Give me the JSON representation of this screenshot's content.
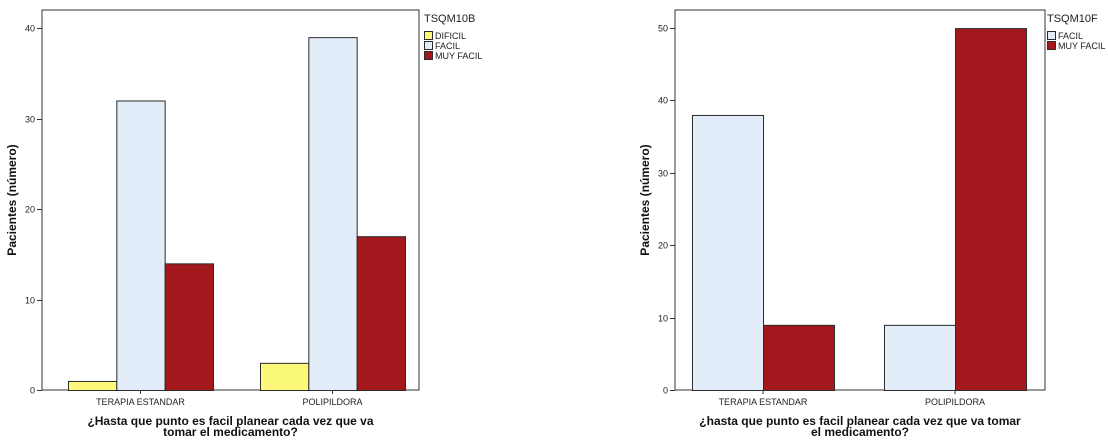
{
  "colors": {
    "DIFICIL": "#fbf87a",
    "FACIL": "#e3edfa",
    "MUY FACIL": "#a3181d",
    "frame": "#333333"
  },
  "chart_data": [
    {
      "type": "bar",
      "title": "",
      "legend_title": "TSQM10B",
      "legend_position": "top-right",
      "xlabel_lines": [
        "¿Hasta que punto es facil planear cada vez que va",
        "tomar el medicamento?"
      ],
      "ylabel": "Pacientes (número)",
      "categories": [
        "TERAPIA ESTANDAR",
        "POLIPILDORA"
      ],
      "series": [
        {
          "name": "DIFICIL",
          "values": [
            1,
            3
          ]
        },
        {
          "name": "FACIL",
          "values": [
            32,
            39
          ]
        },
        {
          "name": "MUY FACIL",
          "values": [
            14,
            17
          ]
        }
      ],
      "ylim": [
        0,
        42
      ],
      "yticks": [
        0,
        10,
        20,
        30,
        40
      ],
      "grid": false
    },
    {
      "type": "bar",
      "title": "",
      "legend_title": "TSQM10F",
      "legend_position": "top-right",
      "xlabel_lines": [
        "¿hasta que punto es facil planear cada vez que va tomar",
        "el medicamento?"
      ],
      "ylabel": "Pacientes (número)",
      "categories": [
        "TERAPIA ESTANDAR",
        "POLIPILDORA"
      ],
      "series": [
        {
          "name": "FACIL",
          "values": [
            38,
            9
          ]
        },
        {
          "name": "MUY FACIL",
          "values": [
            9,
            50
          ]
        }
      ],
      "ylim": [
        0,
        52.5
      ],
      "yticks": [
        0,
        10,
        20,
        30,
        40,
        50
      ],
      "grid": false
    }
  ]
}
